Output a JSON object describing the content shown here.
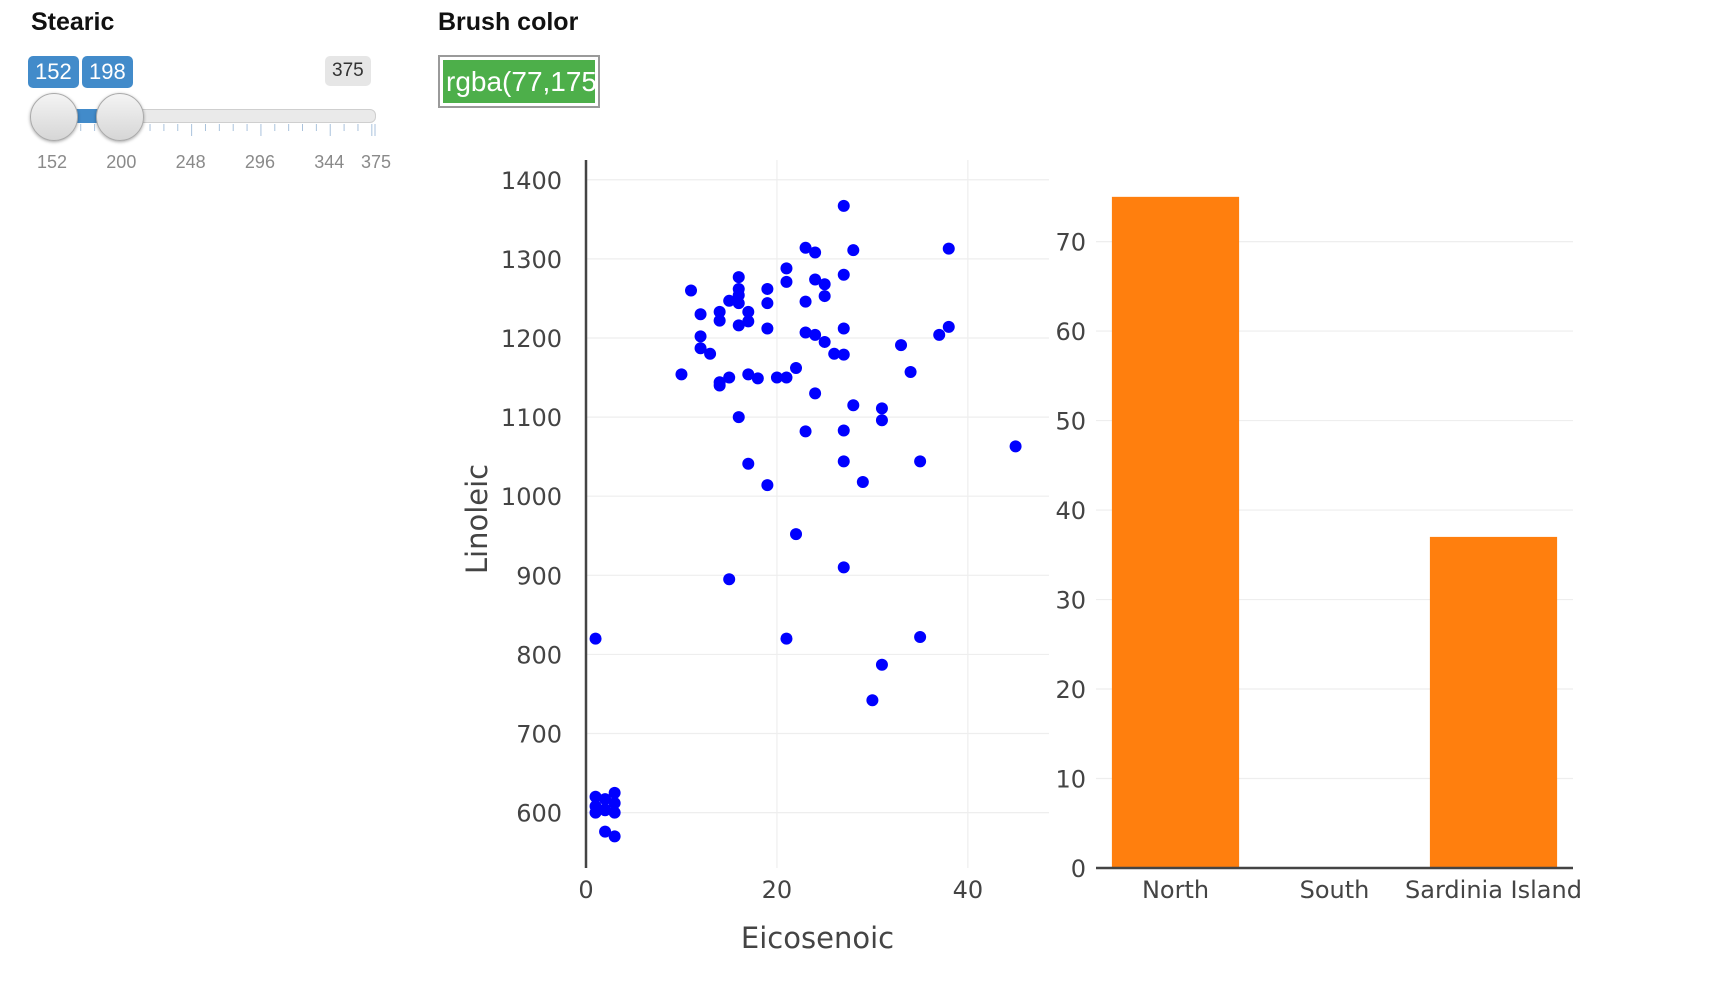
{
  "controls": {
    "stearic": {
      "label": "Stearic",
      "low": "152",
      "high": "198",
      "max": "375",
      "range": [
        152,
        375
      ],
      "selected": [
        152,
        198
      ],
      "ticks": [
        "152",
        "200",
        "248",
        "296",
        "344",
        "375"
      ],
      "tick_values": [
        152,
        200,
        248,
        296,
        344,
        375
      ]
    },
    "brush": {
      "label": "Brush color",
      "value": "rgba(77,175",
      "swatch": "#4daf4a"
    }
  },
  "chart_data": [
    {
      "type": "scatter",
      "xlabel": "Eicosenoic",
      "ylabel": "Linoleic",
      "xlim": [
        0,
        48.5
      ],
      "ylim": [
        530,
        1425
      ],
      "xticks": [
        0,
        20,
        40
      ],
      "yticks": [
        600,
        700,
        800,
        900,
        1000,
        1100,
        1200,
        1300,
        1400
      ],
      "grid": true,
      "marker_color": "#0000ff",
      "points": [
        [
          27,
          1367
        ],
        [
          23,
          1314
        ],
        [
          24,
          1308
        ],
        [
          28,
          1311
        ],
        [
          38,
          1313
        ],
        [
          21,
          1288
        ],
        [
          16,
          1277
        ],
        [
          24,
          1274
        ],
        [
          27,
          1280
        ],
        [
          21,
          1271
        ],
        [
          11,
          1260
        ],
        [
          16,
          1262
        ],
        [
          19,
          1262
        ],
        [
          25,
          1268
        ],
        [
          16,
          1254
        ],
        [
          15,
          1247
        ],
        [
          16,
          1244
        ],
        [
          19,
          1244
        ],
        [
          23,
          1246
        ],
        [
          25,
          1253
        ],
        [
          12,
          1230
        ],
        [
          14,
          1233
        ],
        [
          17,
          1233
        ],
        [
          14,
          1222
        ],
        [
          16,
          1216
        ],
        [
          17,
          1221
        ],
        [
          19,
          1212
        ],
        [
          27,
          1212
        ],
        [
          38,
          1214
        ],
        [
          12,
          1202
        ],
        [
          23,
          1207
        ],
        [
          24,
          1204
        ],
        [
          25,
          1195
        ],
        [
          33,
          1191
        ],
        [
          37,
          1204
        ],
        [
          12,
          1187
        ],
        [
          13,
          1180
        ],
        [
          26,
          1180
        ],
        [
          27,
          1179
        ],
        [
          10,
          1154
        ],
        [
          15,
          1150
        ],
        [
          17,
          1154
        ],
        [
          18,
          1149
        ],
        [
          14,
          1144
        ],
        [
          14,
          1140
        ],
        [
          20,
          1150
        ],
        [
          21,
          1150
        ],
        [
          22,
          1162
        ],
        [
          34,
          1157
        ],
        [
          24,
          1130
        ],
        [
          28,
          1115
        ],
        [
          31,
          1111
        ],
        [
          16,
          1100
        ],
        [
          31,
          1096
        ],
        [
          23,
          1082
        ],
        [
          27,
          1083
        ],
        [
          45,
          1063
        ],
        [
          17,
          1041
        ],
        [
          27,
          1044
        ],
        [
          35,
          1044
        ],
        [
          19,
          1014
        ],
        [
          29,
          1018
        ],
        [
          22,
          952
        ],
        [
          27,
          910
        ],
        [
          15,
          895
        ],
        [
          1,
          820
        ],
        [
          21,
          820
        ],
        [
          35,
          822
        ],
        [
          31,
          787
        ],
        [
          30,
          742
        ],
        [
          1,
          620
        ],
        [
          2,
          617
        ],
        [
          3,
          625
        ],
        [
          1,
          608
        ],
        [
          2,
          604
        ],
        [
          3,
          612
        ],
        [
          1,
          600
        ],
        [
          2,
          603
        ],
        [
          3,
          600
        ],
        [
          2,
          576
        ],
        [
          3,
          570
        ]
      ]
    },
    {
      "type": "bar",
      "categories": [
        "North",
        "South",
        "Sardinia Island"
      ],
      "values": [
        75,
        0,
        37
      ],
      "ylim": [
        0,
        78
      ],
      "yticks": [
        0,
        10,
        20,
        30,
        40,
        50,
        60,
        70
      ],
      "grid": true,
      "bar_color": "#ff7f0e"
    }
  ]
}
